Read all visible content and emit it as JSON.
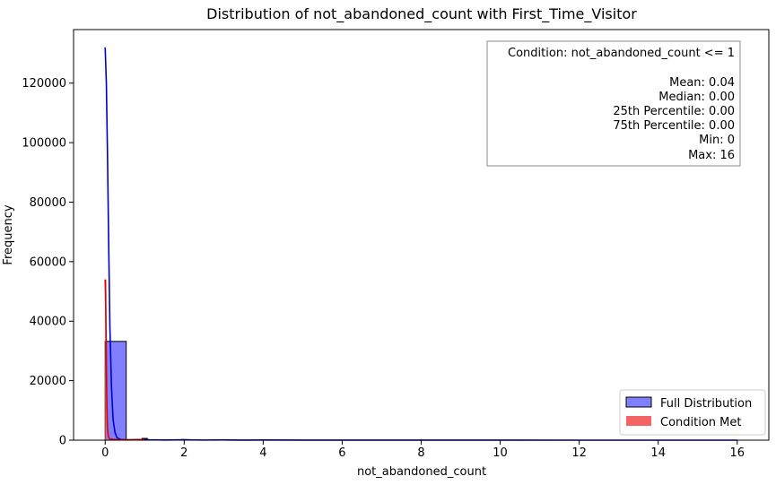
{
  "chart_data": {
    "type": "histogram",
    "title": "Distribution of not_abandoned_count with First_Time_Visitor",
    "xlabel": "not_abandoned_count",
    "ylabel": "Frequency",
    "xlim": [
      -0.8,
      16.8
    ],
    "ylim": [
      0,
      138000
    ],
    "x_ticks": [
      0,
      2,
      4,
      6,
      8,
      10,
      12,
      14,
      16
    ],
    "y_ticks": [
      0,
      20000,
      40000,
      60000,
      80000,
      100000,
      120000
    ],
    "x_tick_labels": [
      "0",
      "2",
      "4",
      "6",
      "8",
      "10",
      "12",
      "14",
      "16"
    ],
    "y_tick_labels": [
      "0",
      "20000",
      "40000",
      "60000",
      "80000",
      "100000",
      "120000"
    ],
    "series": [
      {
        "name": "Full Distribution",
        "kind": "histogram",
        "color": "#0000ff",
        "bins": [
          {
            "x0": 0.0,
            "x1": 0.533,
            "count": 33200
          },
          {
            "x0": 0.933,
            "x1": 1.067,
            "count": 600
          },
          {
            "x0": 1.933,
            "x1": 2.067,
            "count": 200
          },
          {
            "x0": 2.933,
            "x1": 3.067,
            "count": 100
          },
          {
            "x0": 3.933,
            "x1": 4.067,
            "count": 60
          }
        ],
        "kde": [
          [
            0.0,
            132000
          ],
          [
            0.03,
            120000
          ],
          [
            0.06,
            95000
          ],
          [
            0.09,
            65000
          ],
          [
            0.12,
            38000
          ],
          [
            0.16,
            18000
          ],
          [
            0.2,
            7000
          ],
          [
            0.25,
            2500
          ],
          [
            0.3,
            800
          ],
          [
            0.4,
            200
          ],
          [
            0.6,
            100
          ],
          [
            0.9,
            200
          ],
          [
            1.0,
            250
          ],
          [
            1.1,
            150
          ],
          [
            1.5,
            60
          ],
          [
            2.0,
            120
          ],
          [
            2.5,
            40
          ],
          [
            3.0,
            80
          ],
          [
            3.5,
            30
          ],
          [
            4.0,
            60
          ],
          [
            5.0,
            30
          ],
          [
            6.0,
            20
          ],
          [
            8.0,
            10
          ],
          [
            10.0,
            5
          ],
          [
            12.0,
            3
          ],
          [
            16.0,
            0
          ]
        ]
      },
      {
        "name": "Condition Met",
        "kind": "histogram",
        "color": "#ff0000",
        "bins": [
          {
            "x0": 0.0,
            "x1": 0.033,
            "count": 54000
          },
          {
            "x0": 0.967,
            "x1": 1.0,
            "count": 300
          }
        ],
        "kde": [
          [
            0.0,
            54000
          ],
          [
            0.01,
            48000
          ],
          [
            0.02,
            38000
          ],
          [
            0.03,
            26000
          ],
          [
            0.04,
            15000
          ],
          [
            0.05,
            8000
          ],
          [
            0.06,
            4000
          ],
          [
            0.08,
            1200
          ],
          [
            0.12,
            400
          ],
          [
            0.3,
            150
          ],
          [
            0.6,
            150
          ],
          [
            0.95,
            200
          ],
          [
            1.0,
            200
          ]
        ]
      }
    ],
    "legend": {
      "position": "lower-right",
      "entries": [
        "Full Distribution",
        "Condition Met"
      ]
    },
    "stats_box": {
      "position": "top-right",
      "condition": "Condition: not_abandoned_count <= 1",
      "lines": [
        "Mean: 0.04",
        "Median: 0.00",
        "25th Percentile: 0.00",
        "75th Percentile: 0.00",
        "Min: 0",
        "Max: 16"
      ]
    },
    "grid": false
  }
}
